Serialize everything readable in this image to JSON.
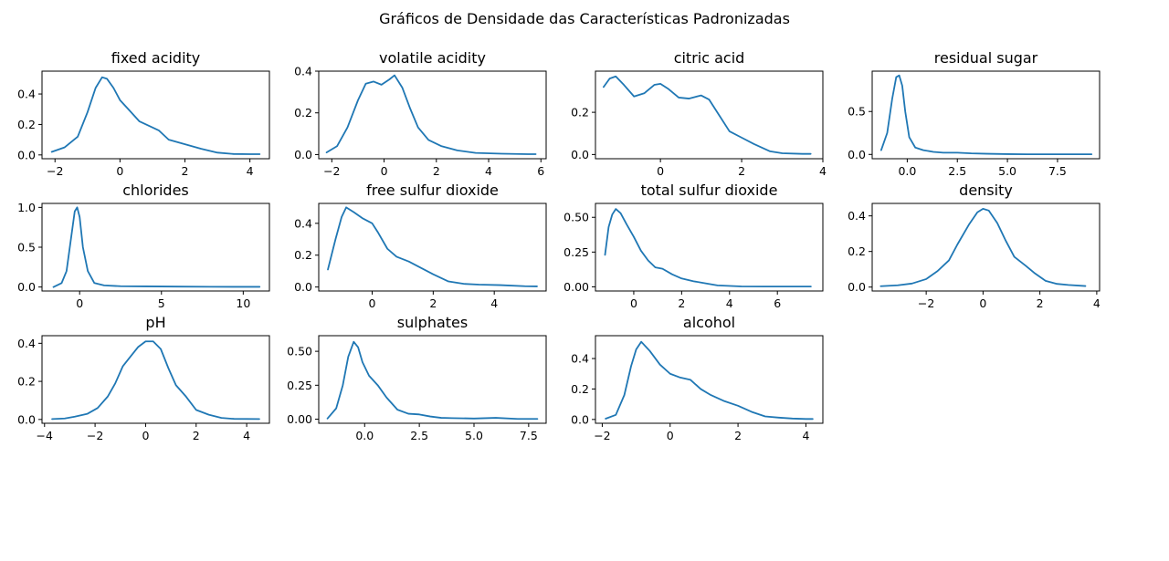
{
  "figure": {
    "title": "Gráficos de Densidade das Características Padronizadas",
    "line_color": "#1f77b4"
  },
  "chart_data": [
    {
      "type": "line",
      "title": "fixed acidity",
      "xlim": [
        -2.4,
        4.6
      ],
      "ylim": [
        -0.025,
        0.55
      ],
      "xticks": [
        {
          "v": -2,
          "l": "−2"
        },
        {
          "v": 0,
          "l": "0"
        },
        {
          "v": 2,
          "l": "2"
        },
        {
          "v": 4,
          "l": "4"
        }
      ],
      "yticks": [
        {
          "v": 0,
          "l": "0.0"
        },
        {
          "v": 0.2,
          "l": "0.2"
        },
        {
          "v": 0.4,
          "l": "0.4"
        }
      ],
      "x": [
        -2.1,
        -1.7,
        -1.3,
        -1.0,
        -0.75,
        -0.55,
        -0.4,
        -0.2,
        0.0,
        0.3,
        0.6,
        0.9,
        1.2,
        1.5,
        2.0,
        2.5,
        3.0,
        3.5,
        4.0,
        4.3
      ],
      "y": [
        0.02,
        0.05,
        0.12,
        0.28,
        0.44,
        0.51,
        0.5,
        0.44,
        0.36,
        0.29,
        0.22,
        0.19,
        0.16,
        0.1,
        0.07,
        0.04,
        0.015,
        0.006,
        0.005,
        0.005
      ]
    },
    {
      "type": "line",
      "title": "volatile acidity",
      "xlim": [
        -2.5,
        6.2
      ],
      "ylim": [
        -0.02,
        0.4
      ],
      "xticks": [
        {
          "v": -2,
          "l": "−2"
        },
        {
          "v": 0,
          "l": "0"
        },
        {
          "v": 2,
          "l": "2"
        },
        {
          "v": 4,
          "l": "4"
        },
        {
          "v": 6,
          "l": "6"
        }
      ],
      "yticks": [
        {
          "v": 0,
          "l": "0.0"
        },
        {
          "v": 0.2,
          "l": "0.2"
        },
        {
          "v": 0.4,
          "l": "0.4"
        }
      ],
      "x": [
        -2.2,
        -1.8,
        -1.4,
        -1.0,
        -0.7,
        -0.4,
        -0.1,
        0.2,
        0.4,
        0.7,
        1.0,
        1.3,
        1.7,
        2.2,
        2.8,
        3.5,
        4.5,
        5.5,
        5.8
      ],
      "y": [
        0.01,
        0.04,
        0.13,
        0.26,
        0.34,
        0.35,
        0.335,
        0.36,
        0.38,
        0.32,
        0.22,
        0.13,
        0.07,
        0.04,
        0.02,
        0.008,
        0.004,
        0.002,
        0.002
      ]
    },
    {
      "type": "line",
      "title": "citric acid",
      "xlim": [
        -1.6,
        4.0
      ],
      "ylim": [
        -0.02,
        0.395
      ],
      "xticks": [
        {
          "v": 0,
          "l": "0"
        },
        {
          "v": 2,
          "l": "2"
        },
        {
          "v": 4,
          "l": "4"
        }
      ],
      "yticks": [
        {
          "v": 0,
          "l": "0.0"
        },
        {
          "v": 0.2,
          "l": "0.2"
        }
      ],
      "x": [
        -1.4,
        -1.25,
        -1.1,
        -0.9,
        -0.65,
        -0.4,
        -0.15,
        0.0,
        0.2,
        0.45,
        0.7,
        1.0,
        1.2,
        1.4,
        1.7,
        2.0,
        2.3,
        2.7,
        3.0,
        3.5,
        3.7
      ],
      "y": [
        0.32,
        0.36,
        0.37,
        0.33,
        0.275,
        0.29,
        0.33,
        0.335,
        0.31,
        0.27,
        0.265,
        0.28,
        0.26,
        0.2,
        0.11,
        0.08,
        0.05,
        0.015,
        0.006,
        0.003,
        0.003
      ]
    },
    {
      "type": "line",
      "title": "residual sugar",
      "xlim": [
        -1.75,
        9.6
      ],
      "ylim": [
        -0.05,
        0.97
      ],
      "xticks": [
        {
          "v": 0,
          "l": "0.0"
        },
        {
          "v": 2.5,
          "l": "2.5"
        },
        {
          "v": 5,
          "l": "5.0"
        },
        {
          "v": 7.5,
          "l": "7.5"
        }
      ],
      "yticks": [
        {
          "v": 0,
          "l": "0.0"
        },
        {
          "v": 0.5,
          "l": "0.5"
        }
      ],
      "x": [
        -1.3,
        -1.0,
        -0.75,
        -0.55,
        -0.4,
        -0.25,
        -0.1,
        0.1,
        0.4,
        0.8,
        1.3,
        1.8,
        2.5,
        3.2,
        4.0,
        5.0,
        6.0,
        7.0,
        8.0,
        9.2
      ],
      "y": [
        0.05,
        0.25,
        0.65,
        0.9,
        0.92,
        0.8,
        0.5,
        0.2,
        0.08,
        0.05,
        0.03,
        0.02,
        0.02,
        0.012,
        0.008,
        0.004,
        0.002,
        0.002,
        0.002,
        0.002
      ]
    },
    {
      "type": "line",
      "title": "chlorides",
      "xlim": [
        -2.3,
        11.6
      ],
      "ylim": [
        -0.05,
        1.05
      ],
      "xticks": [
        {
          "v": 0,
          "l": "0"
        },
        {
          "v": 5,
          "l": "5"
        },
        {
          "v": 10,
          "l": "10"
        }
      ],
      "yticks": [
        {
          "v": 0,
          "l": "0.0"
        },
        {
          "v": 0.5,
          "l": "0.5"
        },
        {
          "v": 1.0,
          "l": "1.0"
        }
      ],
      "x": [
        -1.6,
        -1.1,
        -0.8,
        -0.5,
        -0.3,
        -0.15,
        0.0,
        0.2,
        0.5,
        0.9,
        1.5,
        2.5,
        4.0,
        6.0,
        8.0,
        10.0,
        11.0
      ],
      "y": [
        0.0,
        0.05,
        0.2,
        0.65,
        0.95,
        1.0,
        0.88,
        0.5,
        0.2,
        0.05,
        0.02,
        0.01,
        0.008,
        0.005,
        0.003,
        0.002,
        0.002
      ]
    },
    {
      "type": "line",
      "title": "free sulfur dioxide",
      "xlim": [
        -1.75,
        5.7
      ],
      "ylim": [
        -0.025,
        0.525
      ],
      "xticks": [
        {
          "v": 0,
          "l": "0"
        },
        {
          "v": 2,
          "l": "2"
        },
        {
          "v": 4,
          "l": "4"
        }
      ],
      "yticks": [
        {
          "v": 0,
          "l": "0.0"
        },
        {
          "v": 0.2,
          "l": "0.2"
        },
        {
          "v": 0.4,
          "l": "0.4"
        }
      ],
      "x": [
        -1.45,
        -1.2,
        -1.0,
        -0.85,
        -0.6,
        -0.3,
        0.0,
        0.2,
        0.5,
        0.8,
        1.2,
        1.6,
        2.0,
        2.5,
        3.0,
        3.5,
        4.2,
        5.0,
        5.4
      ],
      "y": [
        0.11,
        0.3,
        0.44,
        0.5,
        0.47,
        0.43,
        0.4,
        0.34,
        0.24,
        0.19,
        0.16,
        0.12,
        0.08,
        0.035,
        0.02,
        0.015,
        0.012,
        0.005,
        0.004
      ]
    },
    {
      "type": "line",
      "title": "total sulfur dioxide",
      "xlim": [
        -1.6,
        7.9
      ],
      "ylim": [
        -0.03,
        0.6
      ],
      "xticks": [
        {
          "v": 0,
          "l": "0"
        },
        {
          "v": 2,
          "l": "2"
        },
        {
          "v": 4,
          "l": "4"
        },
        {
          "v": 6,
          "l": "6"
        }
      ],
      "yticks": [
        {
          "v": 0,
          "l": "0.00"
        },
        {
          "v": 0.25,
          "l": "0.25"
        },
        {
          "v": 0.5,
          "l": "0.50"
        }
      ],
      "x": [
        -1.2,
        -1.05,
        -0.9,
        -0.75,
        -0.55,
        -0.3,
        0.0,
        0.3,
        0.6,
        0.9,
        1.2,
        1.6,
        2.0,
        2.5,
        3.0,
        3.5,
        4.5,
        5.5,
        6.5,
        7.4
      ],
      "y": [
        0.23,
        0.43,
        0.52,
        0.56,
        0.53,
        0.45,
        0.36,
        0.26,
        0.19,
        0.14,
        0.13,
        0.09,
        0.06,
        0.04,
        0.025,
        0.01,
        0.003,
        0.002,
        0.002,
        0.002
      ]
    },
    {
      "type": "line",
      "title": "density",
      "xlim": [
        -3.9,
        4.1
      ],
      "ylim": [
        -0.022,
        0.47
      ],
      "xticks": [
        {
          "v": -2,
          "l": "−2"
        },
        {
          "v": 0,
          "l": "0"
        },
        {
          "v": 2,
          "l": "2"
        },
        {
          "v": 4,
          "l": "4"
        }
      ],
      "yticks": [
        {
          "v": 0,
          "l": "0.0"
        },
        {
          "v": 0.2,
          "l": "0.2"
        },
        {
          "v": 0.4,
          "l": "0.4"
        }
      ],
      "x": [
        -3.6,
        -3.0,
        -2.5,
        -2.0,
        -1.6,
        -1.2,
        -0.9,
        -0.5,
        -0.2,
        0.0,
        0.2,
        0.5,
        0.8,
        1.1,
        1.5,
        1.8,
        2.2,
        2.6,
        3.0,
        3.6
      ],
      "y": [
        0.005,
        0.01,
        0.02,
        0.045,
        0.09,
        0.15,
        0.24,
        0.35,
        0.42,
        0.44,
        0.43,
        0.36,
        0.26,
        0.17,
        0.12,
        0.08,
        0.035,
        0.018,
        0.012,
        0.006
      ]
    },
    {
      "type": "line",
      "title": "pH",
      "xlim": [
        -4.1,
        4.9
      ],
      "ylim": [
        -0.02,
        0.44
      ],
      "xticks": [
        {
          "v": -4,
          "l": "−4"
        },
        {
          "v": -2,
          "l": "−2"
        },
        {
          "v": 0,
          "l": "0"
        },
        {
          "v": 2,
          "l": "2"
        },
        {
          "v": 4,
          "l": "4"
        }
      ],
      "yticks": [
        {
          "v": 0,
          "l": "0.0"
        },
        {
          "v": 0.2,
          "l": "0.2"
        },
        {
          "v": 0.4,
          "l": "0.4"
        }
      ],
      "x": [
        -3.7,
        -3.2,
        -2.8,
        -2.3,
        -1.9,
        -1.5,
        -1.2,
        -0.9,
        -0.6,
        -0.3,
        0.0,
        0.3,
        0.6,
        0.9,
        1.2,
        1.6,
        2.0,
        2.5,
        3.0,
        3.5,
        4.5
      ],
      "y": [
        0.002,
        0.005,
        0.015,
        0.03,
        0.06,
        0.12,
        0.19,
        0.28,
        0.33,
        0.38,
        0.41,
        0.41,
        0.37,
        0.27,
        0.18,
        0.12,
        0.05,
        0.025,
        0.008,
        0.003,
        0.002
      ]
    },
    {
      "type": "line",
      "title": "sulphates",
      "xlim": [
        -2.1,
        8.3
      ],
      "ylim": [
        -0.03,
        0.615
      ],
      "xticks": [
        {
          "v": 0,
          "l": "0.0"
        },
        {
          "v": 2.5,
          "l": "2.5"
        },
        {
          "v": 5,
          "l": "5.0"
        },
        {
          "v": 7.5,
          "l": "7.5"
        }
      ],
      "yticks": [
        {
          "v": 0,
          "l": "0.00"
        },
        {
          "v": 0.25,
          "l": "0.25"
        },
        {
          "v": 0.5,
          "l": "0.50"
        }
      ],
      "x": [
        -1.7,
        -1.3,
        -1.0,
        -0.75,
        -0.5,
        -0.3,
        -0.1,
        0.2,
        0.6,
        1.0,
        1.5,
        2.0,
        2.5,
        3.0,
        3.5,
        4.0,
        5.0,
        6.0,
        7.0,
        7.9
      ],
      "y": [
        0.005,
        0.08,
        0.25,
        0.46,
        0.57,
        0.53,
        0.42,
        0.32,
        0.25,
        0.16,
        0.07,
        0.04,
        0.035,
        0.02,
        0.01,
        0.008,
        0.005,
        0.01,
        0.002,
        0.002
      ]
    },
    {
      "type": "line",
      "title": "alcohol",
      "xlim": [
        -2.2,
        4.5
      ],
      "ylim": [
        -0.025,
        0.55
      ],
      "xticks": [
        {
          "v": -2,
          "l": "−2"
        },
        {
          "v": 0,
          "l": "0"
        },
        {
          "v": 2,
          "l": "2"
        },
        {
          "v": 4,
          "l": "4"
        }
      ],
      "yticks": [
        {
          "v": 0,
          "l": "0.0"
        },
        {
          "v": 0.2,
          "l": "0.2"
        },
        {
          "v": 0.4,
          "l": "0.4"
        }
      ],
      "x": [
        -1.9,
        -1.6,
        -1.35,
        -1.15,
        -1.0,
        -0.85,
        -0.6,
        -0.3,
        0.0,
        0.3,
        0.6,
        0.9,
        1.2,
        1.6,
        2.0,
        2.4,
        2.8,
        3.2,
        3.6,
        4.0,
        4.2
      ],
      "y": [
        0.005,
        0.03,
        0.16,
        0.35,
        0.46,
        0.51,
        0.45,
        0.36,
        0.3,
        0.275,
        0.26,
        0.2,
        0.16,
        0.12,
        0.09,
        0.05,
        0.02,
        0.012,
        0.006,
        0.003,
        0.003
      ]
    }
  ]
}
